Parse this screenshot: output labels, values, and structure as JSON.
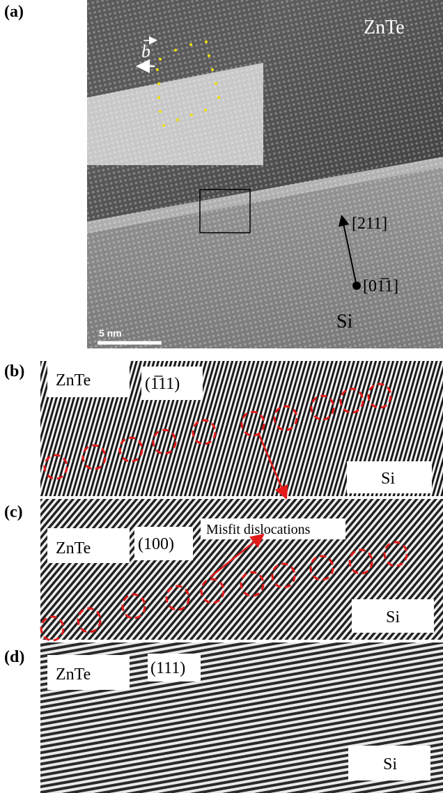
{
  "panel_a": {
    "label": "(a)",
    "phase_top": "ZnTe",
    "burgers_vector": "b",
    "direction_up": "[211]",
    "direction_dot": "[01̅1]",
    "phase_bottom": "Si",
    "scale_bar": "5 nm"
  },
  "panel_b": {
    "label": "(b)",
    "phase_top": "ZnTe",
    "plane": "(1̅11)",
    "phase_bottom": "Si"
  },
  "panel_c": {
    "label": "(c)",
    "phase_top": "ZnTe",
    "plane": "(100)",
    "annotation": "Misfit dislocations",
    "phase_bottom": "Si"
  },
  "panel_d": {
    "label": "(d)",
    "phase_top": "ZnTe",
    "plane": "(111)",
    "phase_bottom": "Si"
  }
}
